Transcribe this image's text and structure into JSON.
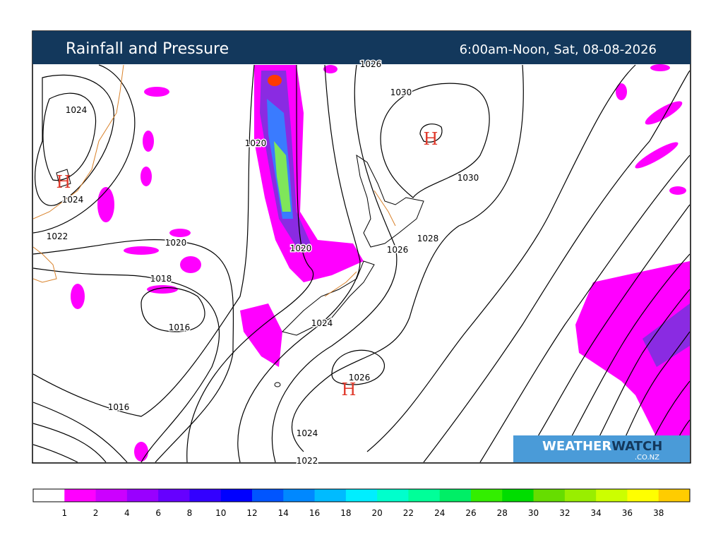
{
  "header": {
    "title": "Rainfall and Pressure",
    "period": "6:00am-Noon, Sat, 08-08-2026"
  },
  "isobar_labels": [
    "1024",
    "1024",
    "1022",
    "1020",
    "1018",
    "1016",
    "1020",
    "1020",
    "1024",
    "1026",
    "1028",
    "1030",
    "1030",
    "1026",
    "1016",
    "1024",
    "1022",
    "1026"
  ],
  "pressure_centres": [
    "H",
    "H",
    "H"
  ],
  "logo": {
    "name_first": "WEATHER",
    "name_second": "WATCH",
    "domain": ".CO.NZ"
  },
  "legend": {
    "colors": [
      "#ffffff",
      "#ff00ff",
      "#cc00ff",
      "#9900ff",
      "#6600ff",
      "#3300ff",
      "#0000ff",
      "#0055ff",
      "#0088ff",
      "#00bbff",
      "#00eeff",
      "#00ffcc",
      "#00ff99",
      "#00ee66",
      "#33ee00",
      "#00dd00",
      "#66dd00",
      "#99ee00",
      "#ccff00",
      "#ffff00",
      "#ffcc00",
      "#ff9900",
      "#ff7700",
      "#ff4400"
    ],
    "labels": [
      "1",
      "2",
      "4",
      "6",
      "8",
      "10",
      "12",
      "14",
      "16",
      "18",
      "20",
      "22",
      "24",
      "26",
      "28",
      "30",
      "32",
      "34",
      "36",
      "38"
    ]
  }
}
